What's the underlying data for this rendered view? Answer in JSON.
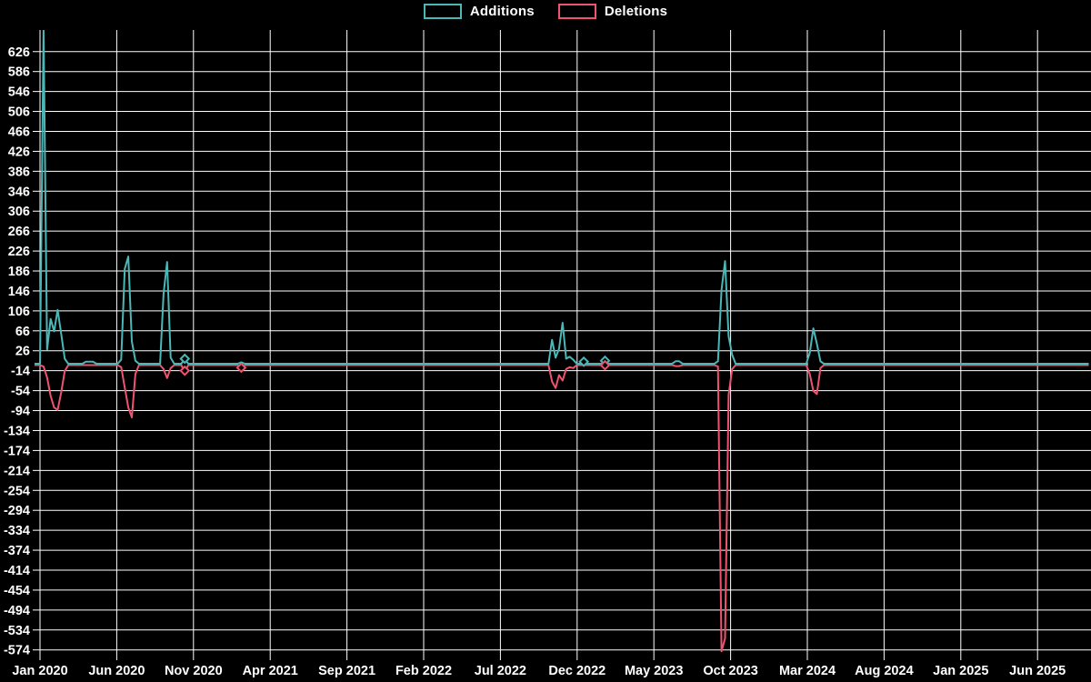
{
  "legend": {
    "additions_label": "Additions",
    "deletions_label": "Deletions"
  },
  "colors": {
    "background": "#000000",
    "grid": "#ffffff",
    "text": "#ffffff",
    "additions": "#4bb7b7",
    "deletions": "#ee5470"
  },
  "chart_data": {
    "type": "line",
    "title": "",
    "xlabel": "",
    "ylabel": "",
    "frequency": "weekly",
    "range": {
      "start": "2020-01-05",
      "end": "2025-09-14"
    },
    "x_axis": {
      "tick_labels": [
        "Jan 2020",
        "Jun 2020",
        "Nov 2020",
        "Apr 2021",
        "Sep 2021",
        "Feb 2022",
        "Jul 2022",
        "Dec 2022",
        "May 2023",
        "Oct 2023",
        "Mar 2024",
        "Aug 2024",
        "Jan 2025",
        "Jun 2025"
      ],
      "tick_interval_months": 5
    },
    "y_axis": {
      "min": -574,
      "max": 626,
      "step": 40,
      "tick_labels": [
        626,
        586,
        546,
        506,
        466,
        426,
        386,
        346,
        306,
        266,
        226,
        186,
        146,
        106,
        66,
        26,
        -14,
        -54,
        -94,
        -134,
        -174,
        -214,
        -254,
        -294,
        -334,
        -374,
        -414,
        -454,
        -494,
        -534,
        -574
      ]
    },
    "grid": true,
    "legend_position": "top-center",
    "series": [
      {
        "name": "Additions",
        "color_key": "additions",
        "default_value": 0,
        "points": [
          [
            "2020-01-12",
            670
          ],
          [
            "2020-01-19",
            28
          ],
          [
            "2020-01-26",
            90
          ],
          [
            "2020-02-02",
            65
          ],
          [
            "2020-02-09",
            108
          ],
          [
            "2020-02-16",
            60
          ],
          [
            "2020-02-23",
            10
          ],
          [
            "2020-04-05",
            4
          ],
          [
            "2020-04-12",
            4
          ],
          [
            "2020-04-19",
            4
          ],
          [
            "2020-06-14",
            8
          ],
          [
            "2020-06-21",
            190
          ],
          [
            "2020-06-28",
            215
          ],
          [
            "2020-07-05",
            45
          ],
          [
            "2020-07-12",
            6
          ],
          [
            "2020-09-06",
            140
          ],
          [
            "2020-09-13",
            204
          ],
          [
            "2020-09-20",
            12
          ],
          [
            "2020-10-18",
            10
          ],
          [
            "2021-02-07",
            3
          ],
          [
            "2022-10-16",
            48
          ],
          [
            "2022-10-23",
            12
          ],
          [
            "2022-10-30",
            30
          ],
          [
            "2022-11-06",
            82
          ],
          [
            "2022-11-13",
            10
          ],
          [
            "2022-11-20",
            14
          ],
          [
            "2022-11-27",
            8
          ],
          [
            "2022-12-18",
            4
          ],
          [
            "2023-01-29",
            6
          ],
          [
            "2023-06-18",
            5
          ],
          [
            "2023-06-25",
            5
          ],
          [
            "2023-09-10",
            5
          ],
          [
            "2023-09-17",
            148
          ],
          [
            "2023-09-24",
            206
          ],
          [
            "2023-10-01",
            55
          ],
          [
            "2023-10-08",
            18
          ],
          [
            "2024-03-10",
            22
          ],
          [
            "2024-03-17",
            71
          ],
          [
            "2024-03-24",
            40
          ],
          [
            "2024-03-31",
            5
          ]
        ]
      },
      {
        "name": "Deletions",
        "color_key": "deletions",
        "default_value": 0,
        "points": [
          [
            "2020-01-12",
            -3
          ],
          [
            "2020-01-19",
            -25
          ],
          [
            "2020-01-26",
            -62
          ],
          [
            "2020-02-02",
            -85
          ],
          [
            "2020-02-09",
            -90
          ],
          [
            "2020-02-16",
            -55
          ],
          [
            "2020-02-23",
            -12
          ],
          [
            "2020-06-14",
            -4
          ],
          [
            "2020-06-21",
            -45
          ],
          [
            "2020-06-28",
            -85
          ],
          [
            "2020-07-05",
            -105
          ],
          [
            "2020-07-12",
            -18
          ],
          [
            "2020-09-06",
            -8
          ],
          [
            "2020-09-13",
            -26
          ],
          [
            "2020-09-20",
            -6
          ],
          [
            "2020-10-18",
            -14
          ],
          [
            "2021-02-07",
            -8
          ],
          [
            "2022-10-16",
            -33
          ],
          [
            "2022-10-23",
            -46
          ],
          [
            "2022-10-30",
            -20
          ],
          [
            "2022-11-06",
            -31
          ],
          [
            "2022-11-13",
            -8
          ],
          [
            "2022-11-20",
            -4
          ],
          [
            "2022-11-27",
            -6
          ],
          [
            "2023-01-29",
            -3
          ],
          [
            "2023-06-18",
            -2
          ],
          [
            "2023-06-25",
            -2
          ],
          [
            "2023-09-10",
            -3
          ],
          [
            "2023-09-17",
            -574
          ],
          [
            "2023-09-24",
            -548
          ],
          [
            "2023-10-01",
            -60
          ],
          [
            "2023-10-08",
            -8
          ],
          [
            "2024-03-10",
            -18
          ],
          [
            "2024-03-17",
            -52
          ],
          [
            "2024-03-24",
            -58
          ],
          [
            "2024-03-31",
            -6
          ]
        ]
      }
    ],
    "markers": [
      {
        "date": "2020-10-18",
        "series": "Additions"
      },
      {
        "date": "2020-10-18",
        "series": "Deletions"
      },
      {
        "date": "2021-02-07",
        "series": "Deletions"
      },
      {
        "date": "2022-12-18",
        "series": "Additions"
      },
      {
        "date": "2023-01-29",
        "series": "Additions"
      },
      {
        "date": "2023-01-29",
        "series": "Deletions"
      }
    ]
  }
}
